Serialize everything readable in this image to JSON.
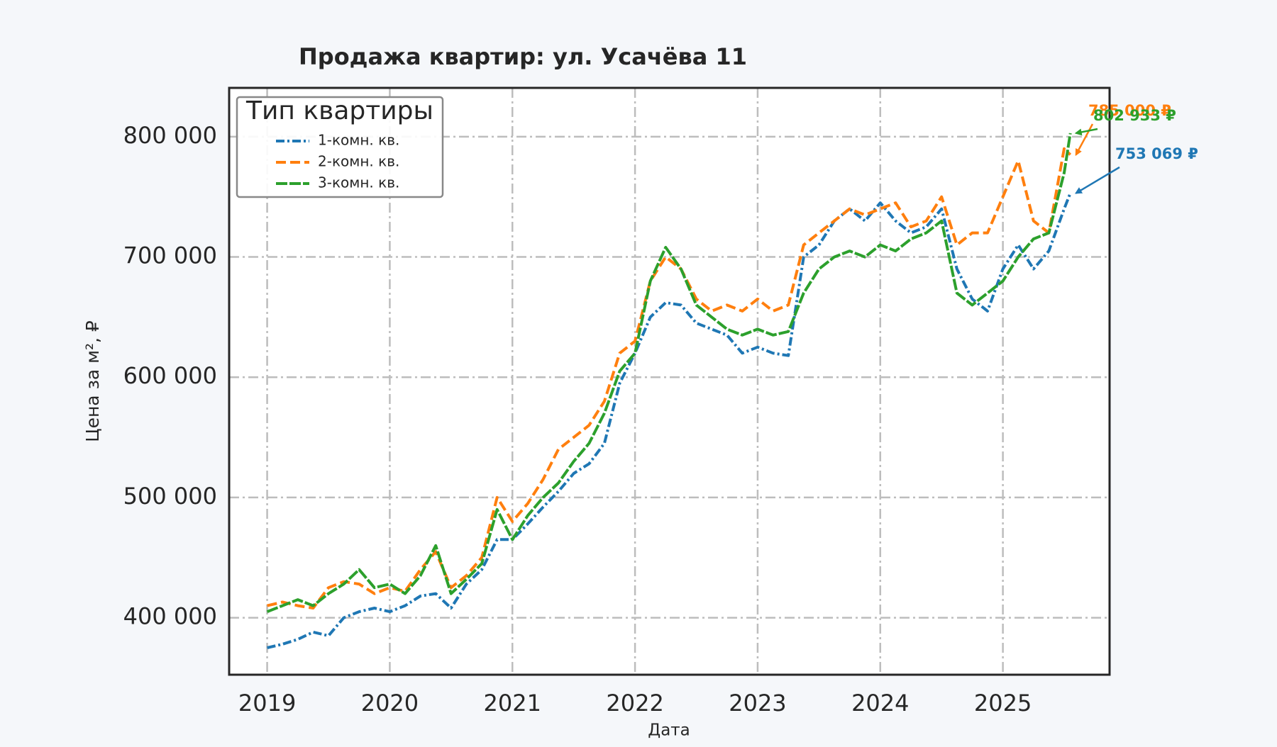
{
  "chart_data": {
    "type": "line",
    "title": "Продажа квартир: ул. Усачёва 11",
    "x_label": "Дата",
    "y_label": "Цена за м², ₽",
    "legend_title": "Тип квартиры",
    "legend_position": "upper left",
    "grid": true,
    "xlim": [
      2018.69,
      2025.87
    ],
    "xticks": [
      2019,
      2020,
      2021,
      2022,
      2023,
      2024,
      2025
    ],
    "ylim": [
      352600,
      840600
    ],
    "yticks": [
      {
        "value": 400000,
        "label": "400 000"
      },
      {
        "value": 500000,
        "label": "500 000"
      },
      {
        "value": 600000,
        "label": "600 000"
      },
      {
        "value": 700000,
        "label": "700 000"
      },
      {
        "value": 800000,
        "label": "800 000"
      }
    ],
    "x": [
      2019.0,
      2019.125,
      2019.25,
      2019.375,
      2019.5,
      2019.625,
      2019.75,
      2019.875,
      2020.0,
      2020.125,
      2020.25,
      2020.375,
      2020.5,
      2020.625,
      2020.75,
      2020.875,
      2021.0,
      2021.125,
      2021.25,
      2021.375,
      2021.5,
      2021.625,
      2021.75,
      2021.875,
      2022.0,
      2022.125,
      2022.25,
      2022.375,
      2022.5,
      2022.625,
      2022.75,
      2022.875,
      2023.0,
      2023.125,
      2023.25,
      2023.375,
      2023.5,
      2023.625,
      2023.75,
      2023.875,
      2024.0,
      2024.125,
      2024.25,
      2024.375,
      2024.5,
      2024.625,
      2024.75,
      2024.875,
      2025.0,
      2025.125,
      2025.25,
      2025.375,
      2025.5,
      2025.55
    ],
    "series": [
      {
        "name": "1-комн. кв.",
        "color": "#1f77b4",
        "style": "dashdot",
        "values": [
          375000,
          378000,
          382000,
          388000,
          385000,
          400000,
          405000,
          408000,
          405000,
          410000,
          418000,
          420000,
          408000,
          428000,
          440000,
          465000,
          465000,
          478000,
          492000,
          505000,
          520000,
          528000,
          545000,
          595000,
          620000,
          650000,
          662000,
          660000,
          645000,
          640000,
          635000,
          620000,
          625000,
          620000,
          618000,
          700000,
          710000,
          730000,
          740000,
          730000,
          745000,
          730000,
          720000,
          725000,
          740000,
          690000,
          665000,
          655000,
          690000,
          710000,
          690000,
          705000,
          740000,
          753069
        ]
      },
      {
        "name": "2-комн. кв.",
        "color": "#ff7f0e",
        "style": "dashed",
        "values": [
          410000,
          413000,
          410000,
          408000,
          425000,
          430000,
          428000,
          420000,
          425000,
          422000,
          440000,
          455000,
          425000,
          435000,
          450000,
          500000,
          480000,
          495000,
          515000,
          540000,
          550000,
          560000,
          580000,
          620000,
          630000,
          680000,
          700000,
          690000,
          665000,
          655000,
          660000,
          655000,
          665000,
          655000,
          660000,
          710000,
          720000,
          730000,
          740000,
          735000,
          740000,
          745000,
          725000,
          730000,
          750000,
          710000,
          720000,
          720000,
          750000,
          780000,
          730000,
          720000,
          790000,
          785000
        ]
      },
      {
        "name": "3-комн. кв.",
        "color": "#2ca02c",
        "style": "solid",
        "values": [
          405000,
          410000,
          415000,
          410000,
          420000,
          428000,
          440000,
          425000,
          428000,
          420000,
          435000,
          460000,
          420000,
          432000,
          445000,
          490000,
          465000,
          485000,
          500000,
          512000,
          530000,
          545000,
          570000,
          605000,
          620000,
          680000,
          708000,
          690000,
          660000,
          650000,
          640000,
          635000,
          640000,
          635000,
          638000,
          670000,
          690000,
          700000,
          705000,
          700000,
          710000,
          705000,
          715000,
          720000,
          730000,
          670000,
          660000,
          670000,
          680000,
          700000,
          715000,
          720000,
          770000,
          802933
        ]
      }
    ],
    "annotations": [
      {
        "label": "785 000 ₽",
        "series": 1,
        "x": 2025.55,
        "value": 785000
      },
      {
        "label": "802 933 ₽",
        "series": 2,
        "x": 2025.55,
        "value": 802933
      },
      {
        "label": "753 069 ₽",
        "series": 0,
        "x": 2025.55,
        "value": 753069
      }
    ]
  }
}
